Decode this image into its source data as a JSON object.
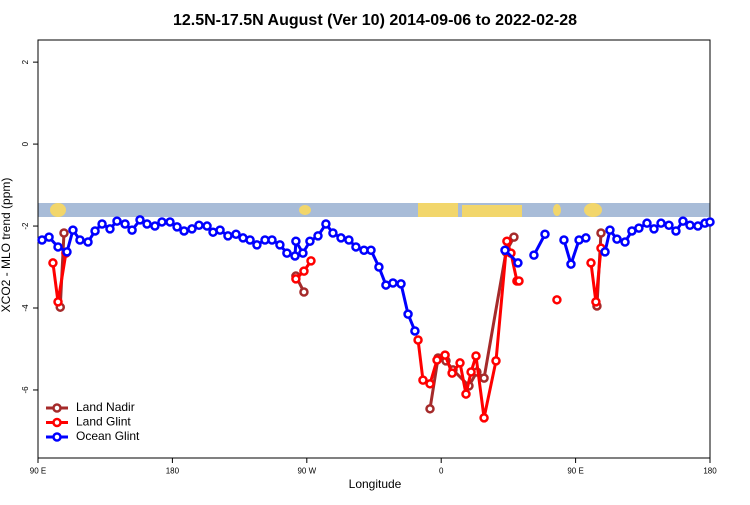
{
  "chart_data": {
    "type": "line",
    "title": "12.5N-17.5N August (Ver 10)   2014-09-06 to 2022-02-28",
    "x_label": "Longitude",
    "y_label": "XCO2 - MLO trend (ppm)",
    "xlim": [
      90,
      540
    ],
    "ylim": [
      -7.66,
      2.54
    ],
    "xticks": [
      {
        "value": 90,
        "label": "90 E"
      },
      {
        "value": 180,
        "label": "180"
      },
      {
        "value": 270,
        "label": "90 W"
      },
      {
        "value": 360,
        "label": "0"
      },
      {
        "value": 450,
        "label": "90 E"
      },
      {
        "value": 540,
        "label": "180"
      }
    ],
    "yticks": [
      2,
      0,
      -2,
      -4,
      -6
    ],
    "legend": "bottom-left",
    "series": [
      {
        "name": "Land Nadir",
        "color": "#a52a2a",
        "x": [
          104.9,
          107.4,
          null,
          262.7,
          268.1,
          null,
          352.5,
          357.9,
          363.2,
          367.9,
          378.6,
          383.9,
          388.7,
          403.4,
          408.7,
          null,
          464.3,
          467.0
        ],
        "values": [
          -3.98,
          -2.17,
          null,
          -3.22,
          -3.61,
          null,
          -6.46,
          -5.22,
          -5.29,
          -5.51,
          -5.9,
          -5.56,
          -5.71,
          -2.63,
          -2.27,
          null,
          -3.95,
          -2.17
        ]
      },
      {
        "name": "Land Glint",
        "color": "#ff0000",
        "x": [
          100.0,
          103.4,
          108.7,
          null,
          262.7,
          268.1,
          272.8,
          null,
          344.5,
          347.8,
          352.5,
          357.2,
          362.6,
          367.3,
          372.6,
          376.6,
          380.0,
          383.3,
          388.7,
          396.7,
          404.0,
          406.7,
          410.7,
          412.1,
          null,
          437.5,
          null,
          460.3,
          463.6,
          467.0
        ],
        "values": [
          -2.9,
          -3.85,
          -2.66,
          null,
          -3.29,
          -3.1,
          -2.85,
          null,
          -4.78,
          -5.76,
          -5.85,
          -5.27,
          -5.15,
          -5.59,
          -5.34,
          -6.1,
          -5.56,
          -5.17,
          -6.68,
          -5.29,
          -2.37,
          -2.66,
          -3.34,
          -3.34,
          null,
          -3.8,
          null,
          -2.9,
          -3.85,
          -2.54
        ]
      },
      {
        "name": "Ocean Glint",
        "color": "#0000ff",
        "x": [
          92.7,
          97.4,
          103.4,
          109.4,
          113.4,
          118.1,
          123.5,
          128.2,
          132.9,
          138.2,
          142.9,
          148.3,
          153.0,
          158.3,
          163.0,
          168.3,
          173.0,
          178.4,
          183.1,
          187.8,
          193.1,
          197.8,
          203.2,
          207.2,
          211.9,
          217.2,
          222.6,
          227.3,
          232.0,
          236.6,
          242.0,
          246.7,
          252.0,
          256.7,
          262.1,
          262.7,
          267.4,
          272.1,
          277.5,
          282.8,
          287.5,
          292.9,
          298.2,
          302.9,
          308.3,
          313.0,
          318.3,
          323.0,
          327.7,
          333.1,
          337.8,
          342.4,
          null,
          402.7,
          411.4,
          null,
          422.1,
          429.5,
          null,
          442.2,
          446.9,
          452.3,
          456.9,
          null,
          469.7,
          473.0,
          477.7,
          483.1,
          487.7,
          492.4,
          497.8,
          502.5,
          507.2,
          512.5,
          517.2,
          521.9,
          526.6,
          531.9,
          536.6,
          540
        ],
        "values": [
          -2.34,
          -2.27,
          -2.51,
          -2.63,
          -2.1,
          -2.34,
          -2.39,
          -2.12,
          -1.95,
          -2.07,
          -1.88,
          -1.95,
          -2.1,
          -1.85,
          -1.95,
          -2.0,
          -1.9,
          -1.9,
          -2.02,
          -2.12,
          -2.07,
          -1.98,
          -2.0,
          -2.15,
          -2.1,
          -2.24,
          -2.2,
          -2.29,
          -2.34,
          -2.46,
          -2.34,
          -2.34,
          -2.46,
          -2.66,
          -2.73,
          -2.37,
          -2.66,
          -2.37,
          -2.24,
          -1.95,
          -2.17,
          -2.29,
          -2.34,
          -2.51,
          -2.59,
          -2.59,
          -3.0,
          -3.44,
          -3.39,
          -3.41,
          -4.15,
          -4.56,
          null,
          -2.59,
          -2.9,
          null,
          -2.71,
          -2.2,
          null,
          -2.34,
          -2.93,
          -2.34,
          -2.29,
          null,
          -2.63,
          -2.1,
          -2.32,
          -2.39,
          -2.12,
          -2.05,
          -1.93,
          -2.07,
          -1.93,
          -1.98,
          -2.12,
          -1.88,
          -1.98,
          -2.0,
          -1.93,
          -1.9
        ]
      }
    ]
  }
}
